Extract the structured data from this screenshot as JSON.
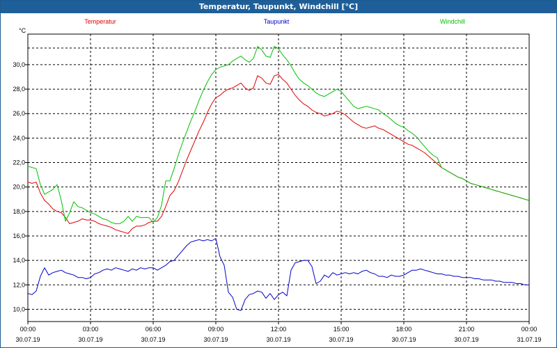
{
  "window": {
    "title": "Temperatur, Taupunkt, Windchill [°C]"
  },
  "chart_data": {
    "type": "line",
    "title": "Temperatur, Taupunkt, Windchill [°C]",
    "unit_label": "°C",
    "xlim": [
      "30.07.19 00:00",
      "31.07.19 00:00"
    ],
    "ylim": [
      9.0,
      32.5
    ],
    "grid": true,
    "legend_position": "top",
    "x_ticks": [
      {
        "time": "00:00",
        "date": "30.07.19"
      },
      {
        "time": "03:00",
        "date": "30.07.19"
      },
      {
        "time": "06:00",
        "date": "30.07.19"
      },
      {
        "time": "09:00",
        "date": "30.07.19"
      },
      {
        "time": "12:00",
        "date": "30.07.19"
      },
      {
        "time": "15:00",
        "date": "30.07.19"
      },
      {
        "time": "18:00",
        "date": "30.07.19"
      },
      {
        "time": "21:00",
        "date": "30.07.19"
      },
      {
        "time": "00:00",
        "date": "31.07.19"
      }
    ],
    "y_ticks": [
      "10,0",
      "12,0",
      "14,0",
      "16,0",
      "18,0",
      "20,0",
      "22,0",
      "24,0",
      "26,0",
      "28,0",
      "30,0"
    ],
    "x": [
      "00:00",
      "00:12",
      "00:24",
      "00:36",
      "00:48",
      "01:00",
      "01:12",
      "01:24",
      "01:36",
      "01:48",
      "02:00",
      "02:12",
      "02:24",
      "02:36",
      "02:48",
      "03:00",
      "03:12",
      "03:24",
      "03:36",
      "03:48",
      "04:00",
      "04:12",
      "04:24",
      "04:36",
      "04:48",
      "05:00",
      "05:12",
      "05:24",
      "05:36",
      "05:48",
      "06:00",
      "06:12",
      "06:24",
      "06:36",
      "06:48",
      "07:00",
      "07:12",
      "07:24",
      "07:36",
      "07:48",
      "08:00",
      "08:12",
      "08:24",
      "08:36",
      "08:48",
      "09:00",
      "09:12",
      "09:24",
      "09:36",
      "09:48",
      "10:00",
      "10:12",
      "10:24",
      "10:36",
      "10:48",
      "11:00",
      "11:12",
      "11:24",
      "11:36",
      "11:48",
      "12:00",
      "12:12",
      "12:24",
      "12:36",
      "12:48",
      "13:00",
      "13:12",
      "13:24",
      "13:36",
      "13:48",
      "14:00",
      "14:12",
      "14:24",
      "14:36",
      "14:48",
      "15:00",
      "15:12",
      "15:24",
      "15:36",
      "15:48",
      "16:00",
      "16:12",
      "16:24",
      "16:36",
      "16:48",
      "17:00",
      "17:12",
      "17:24",
      "17:36",
      "17:48",
      "18:00",
      "18:12",
      "18:24",
      "18:36",
      "18:48",
      "19:00",
      "19:12",
      "19:24",
      "19:36",
      "19:48",
      "20:00",
      "20:12",
      "20:24",
      "20:36",
      "20:48",
      "21:00",
      "21:12",
      "21:24",
      "21:36",
      "21:48",
      "22:00",
      "22:12",
      "22:24",
      "22:36",
      "22:48",
      "23:00",
      "23:12",
      "23:24",
      "23:36",
      "23:48",
      "00:00"
    ],
    "series": [
      {
        "name": "Temperatur",
        "color": "#e00000",
        "values": [
          20.4,
          20.3,
          20.4,
          19.5,
          18.9,
          18.6,
          18.2,
          18.0,
          17.9,
          17.5,
          17.0,
          17.1,
          17.2,
          17.4,
          17.3,
          17.3,
          17.2,
          17.0,
          16.9,
          16.8,
          16.7,
          16.5,
          16.4,
          16.3,
          16.2,
          16.6,
          16.8,
          16.8,
          16.9,
          17.1,
          17.2,
          17.2,
          17.6,
          18.4,
          19.3,
          19.7,
          20.4,
          21.3,
          22.2,
          23.0,
          23.8,
          24.6,
          25.3,
          26.1,
          26.8,
          27.3,
          27.5,
          27.8,
          28.0,
          28.1,
          28.3,
          28.5,
          28.1,
          27.9,
          28.1,
          29.1,
          28.9,
          28.5,
          28.4,
          29.1,
          29.2,
          28.8,
          28.5,
          28.0,
          27.5,
          27.1,
          26.8,
          26.6,
          26.3,
          26.1,
          26.0,
          25.8,
          25.9,
          26.0,
          26.2,
          26.1,
          25.9,
          25.6,
          25.3,
          25.1,
          24.9,
          24.8,
          24.9,
          25.0,
          24.8,
          24.7,
          24.5,
          24.3,
          24.1,
          23.9,
          23.7,
          23.5,
          23.4,
          23.2,
          23.0,
          22.8,
          22.5,
          22.2,
          21.9,
          21.6,
          21.4,
          21.2,
          21.0,
          20.8,
          20.7,
          20.5,
          20.3,
          20.2,
          20.1,
          20.0,
          19.9,
          19.8,
          19.7,
          19.6,
          19.5,
          19.4,
          19.3,
          19.2,
          19.1,
          19.0,
          18.9
        ]
      },
      {
        "name": "Taupunkt",
        "color": "#0000c8",
        "values": [
          11.3,
          11.2,
          11.5,
          12.7,
          13.4,
          12.8,
          13.0,
          13.1,
          13.2,
          13.0,
          12.9,
          12.8,
          12.6,
          12.6,
          12.5,
          12.6,
          12.9,
          13.0,
          13.2,
          13.3,
          13.2,
          13.4,
          13.3,
          13.2,
          13.1,
          13.3,
          13.2,
          13.4,
          13.3,
          13.4,
          13.4,
          13.2,
          13.4,
          13.6,
          13.9,
          14.0,
          14.4,
          14.8,
          15.2,
          15.5,
          15.6,
          15.7,
          15.6,
          15.7,
          15.6,
          15.8,
          14.3,
          13.6,
          11.4,
          11.0,
          10.0,
          9.9,
          10.8,
          11.2,
          11.3,
          11.5,
          11.4,
          10.9,
          11.3,
          10.8,
          11.2,
          11.4,
          11.1,
          13.2,
          13.8,
          13.9,
          14.0,
          14.0,
          13.5,
          12.1,
          12.3,
          12.8,
          12.6,
          13.0,
          12.8,
          12.9,
          13.0,
          12.9,
          13.0,
          12.9,
          13.1,
          13.2,
          13.0,
          12.9,
          12.7,
          12.7,
          12.6,
          12.8,
          12.7,
          12.7,
          12.8,
          13.0,
          13.2,
          13.2,
          13.3,
          13.2,
          13.1,
          13.0,
          12.9,
          12.9,
          12.8,
          12.8,
          12.7,
          12.7,
          12.6,
          12.6,
          12.6,
          12.5,
          12.5,
          12.4,
          12.4,
          12.4,
          12.3,
          12.3,
          12.2,
          12.2,
          12.2,
          12.1,
          12.1,
          12.0,
          12.0
        ]
      },
      {
        "name": "Windchill",
        "color": "#00c000",
        "values": [
          21.7,
          21.6,
          21.5,
          20.2,
          19.4,
          19.6,
          19.8,
          20.2,
          18.9,
          17.2,
          17.9,
          18.8,
          18.4,
          18.3,
          18.1,
          17.9,
          17.8,
          17.6,
          17.4,
          17.3,
          17.1,
          17.0,
          17.0,
          17.2,
          17.6,
          17.2,
          17.6,
          17.5,
          17.5,
          17.5,
          17.1,
          17.5,
          18.5,
          20.5,
          20.5,
          21.5,
          22.6,
          23.6,
          24.5,
          25.4,
          26.2,
          27.1,
          27.9,
          28.6,
          29.2,
          29.6,
          29.8,
          29.9,
          30.0,
          30.3,
          30.5,
          30.7,
          30.4,
          30.2,
          30.5,
          31.5,
          31.2,
          30.7,
          30.6,
          31.5,
          31.3,
          30.8,
          30.4,
          29.9,
          29.3,
          28.8,
          28.5,
          28.3,
          28.0,
          27.7,
          27.5,
          27.4,
          27.6,
          27.8,
          28.0,
          27.8,
          27.4,
          27.0,
          26.6,
          26.4,
          26.5,
          26.6,
          26.5,
          26.4,
          26.3,
          26.0,
          25.8,
          25.5,
          25.2,
          25.0,
          24.9,
          24.6,
          24.4,
          24.1,
          23.7,
          23.3,
          22.9,
          22.6,
          22.4,
          21.6,
          21.4,
          21.2,
          21.0,
          20.8,
          20.7,
          20.5,
          20.3,
          20.2,
          20.1,
          20.0,
          19.9,
          19.8,
          19.7,
          19.6,
          19.5,
          19.4,
          19.3,
          19.2,
          19.1,
          19.0,
          18.9
        ]
      }
    ]
  }
}
